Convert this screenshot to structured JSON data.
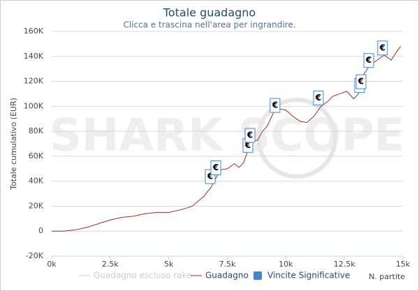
{
  "chart_data": {
    "type": "line",
    "title": "Totale guadagno",
    "subtitle": "Clicca e trascina nell'area per ingrandire.",
    "watermark": "SHARK SCOPE",
    "y_label": "Totale cumulativo (EUR)",
    "x_label": "N. partite",
    "x": [
      0,
      500,
      1000,
      1500,
      2000,
      2500,
      3000,
      3500,
      4000,
      4500,
      5000,
      5500,
      6000,
      6500,
      6800,
      7000,
      7200,
      7500,
      7800,
      8000,
      8200,
      8400,
      8600,
      8800,
      9000,
      9200,
      9500,
      9700,
      10000,
      10300,
      10600,
      10900,
      11200,
      11500,
      11800,
      12000,
      12300,
      12600,
      12900,
      13100,
      13300,
      13600,
      13900,
      14200,
      14500,
      14700,
      14900
    ],
    "series": [
      {
        "name": "Guadagno escluso rake",
        "color": "#cccccc",
        "visible": false
      },
      {
        "name": "Guadagno",
        "color": "#a52a2a",
        "values": [
          0,
          0,
          1000,
          3000,
          6000,
          9000,
          11000,
          12000,
          14000,
          15000,
          15000,
          17000,
          20000,
          28000,
          35000,
          42000,
          49000,
          50000,
          54000,
          51000,
          55000,
          66000,
          72000,
          73000,
          80000,
          84000,
          96000,
          98000,
          97000,
          92000,
          88000,
          87000,
          92000,
          100000,
          104000,
          108000,
          110000,
          112000,
          106000,
          110000,
          125000,
          133000,
          137000,
          141000,
          137000,
          143000,
          148000
        ]
      },
      {
        "name": "Vincite Significative",
        "color": "#4285d4",
        "label": "€",
        "x": [
          6770,
          7010,
          8380,
          8470,
          9540,
          11390,
          13150,
          13210,
          13540,
          14130
        ],
        "values": [
          37000,
          44000,
          62000,
          70000,
          94000,
          100000,
          110000,
          113000,
          130000,
          140000
        ]
      }
    ],
    "xlim": [
      0,
      15000
    ],
    "xticks": [
      {
        "value": 0,
        "label": "0k"
      },
      {
        "value": 2500,
        "label": "2.5k"
      },
      {
        "value": 5000,
        "label": "5k"
      },
      {
        "value": 7500,
        "label": "7.5k"
      },
      {
        "value": 10000,
        "label": "10k"
      },
      {
        "value": 12500,
        "label": "12.5k"
      },
      {
        "value": 15000,
        "label": "15k"
      }
    ],
    "ylim": [
      -20000,
      160000
    ],
    "yticks": [
      {
        "value": -20000,
        "label": "-20K"
      },
      0,
      {
        "value": 20000,
        "label": "20K"
      },
      {
        "value": 40000,
        "label": "40K"
      },
      {
        "value": 60000,
        "label": "60K"
      },
      {
        "value": 80000,
        "label": "80K"
      },
      {
        "value": 100000,
        "label": "100K"
      },
      {
        "value": 120000,
        "label": "120K"
      },
      {
        "value": 140000,
        "label": "140K"
      },
      {
        "value": 160000,
        "label": "160K"
      }
    ],
    "grid": true
  }
}
